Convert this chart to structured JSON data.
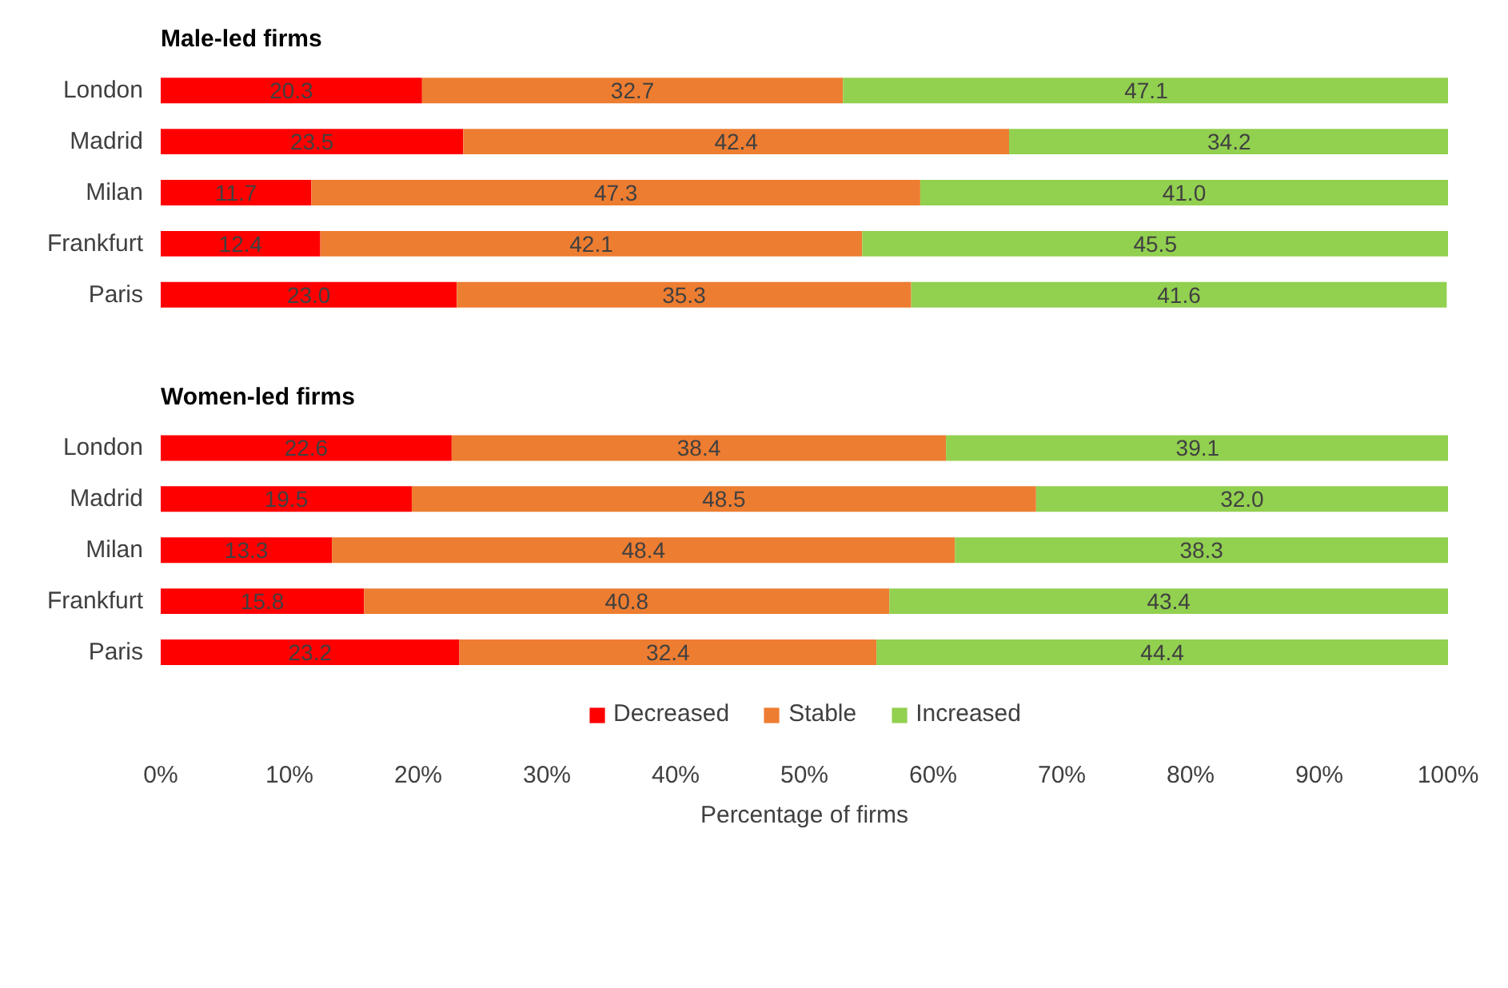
{
  "chart_data": [
    {
      "type": "bar",
      "orientation": "horizontal",
      "stacked": true,
      "title": "Male-led firms",
      "categories": [
        "London",
        "Madrid",
        "Milan",
        "Frankfurt",
        "Paris"
      ],
      "series": [
        {
          "color": "#ff0000",
          "values": [
            20.3,
            23.5,
            11.7,
            12.4,
            23.0
          ],
          "value_labels": [
            "20.3",
            "23.5",
            "11.7",
            "12.4",
            "23.0"
          ]
        },
        {
          "color": "#ed7d31",
          "values": [
            32.7,
            42.4,
            47.3,
            42.1,
            35.3
          ],
          "value_labels": [
            "32.7",
            "42.4",
            "47.3",
            "42.1",
            "35.3"
          ]
        },
        {
          "color": "#92d050",
          "values": [
            47.1,
            34.2,
            41.0,
            45.5,
            41.6
          ],
          "value_labels": [
            "47.1",
            "34.2",
            "41.0",
            "45.5",
            "41.6"
          ]
        }
      ],
      "xlim": [
        0,
        100
      ],
      "tick_labels": "y",
      "grid": false
    },
    {
      "type": "bar",
      "orientation": "horizontal",
      "stacked": true,
      "title": "Women-led firms",
      "xlabel": "Percentage of firms",
      "categories": [
        "London",
        "Madrid",
        "Milan",
        "Frankfurt",
        "Paris"
      ],
      "series": [
        {
          "name": "Decreased",
          "color": "#ff0000",
          "values": [
            22.6,
            19.5,
            13.3,
            15.8,
            23.2
          ],
          "value_labels": [
            "22.6",
            "19.5",
            "13.3",
            "15.8",
            "23.2"
          ]
        },
        {
          "name": "Stable",
          "color": "#ed7d31",
          "values": [
            38.4,
            48.5,
            48.4,
            40.8,
            32.4
          ],
          "value_labels": [
            "38.4",
            "48.5",
            "48.4",
            "40.8",
            "32.4"
          ]
        },
        {
          "name": "Increased",
          "color": "#92d050",
          "values": [
            39.1,
            32.0,
            38.3,
            43.4,
            44.4
          ],
          "value_labels": [
            "39.1",
            "32.0",
            "38.3",
            "43.4",
            "44.4"
          ]
        }
      ],
      "xlim": [
        0,
        100
      ],
      "xticks": [
        {
          "value": 0,
          "label": "0%"
        },
        {
          "value": 10,
          "label": "10%"
        },
        {
          "value": 20,
          "label": "20%"
        },
        {
          "value": 30,
          "label": "30%"
        },
        {
          "value": 40,
          "label": "40%"
        },
        {
          "value": 50,
          "label": "50%"
        },
        {
          "value": 60,
          "label": "60%"
        },
        {
          "value": 70,
          "label": "70%"
        },
        {
          "value": 80,
          "label": "80%"
        },
        {
          "value": 90,
          "label": "90%"
        },
        {
          "value": 100,
          "label": "100%"
        }
      ],
      "grid": false,
      "legend": "bottom"
    }
  ]
}
